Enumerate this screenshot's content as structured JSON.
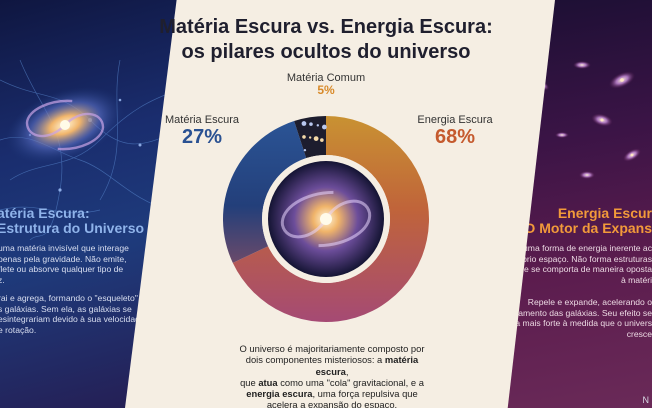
{
  "title": {
    "line1": "Matéria Escura vs. Energia Escura:",
    "line2": "os pilares ocultos do universo"
  },
  "chart_data": {
    "type": "pie",
    "title": "Matéria Escura vs. Energia Escura: os pilares ocultos do universo",
    "categories": [
      "Energia Escura",
      "Matéria Escura",
      "Matéria Comum"
    ],
    "values": [
      68,
      27,
      5
    ],
    "labels": [
      "68%",
      "27%",
      "5%"
    ],
    "colors": [
      "#c16a2e",
      "#2a5192",
      "#1d1d2e"
    ]
  },
  "labels": {
    "dark_matter_name": "Matéria Escura",
    "dark_matter_pct": "27%",
    "ordinary_matter_name": "Matéria Comum",
    "ordinary_matter_pct": "5%",
    "dark_energy_name": "Energia Escura",
    "dark_energy_pct": "68%"
  },
  "left": {
    "title_line1": "atéria Escura:",
    "title_line2": "Estrutura do Universo",
    "p1": [
      "uma matéria invisível que interage",
      "penas pela gravidade. Não emite,",
      "flete ou absorve qualquer tipo de",
      "z."
    ],
    "p2": [
      "rai e agrega, formando o \"esqueleto\"",
      "s galáxias. Sem ela, as galáxias se",
      "esintegrariam devido à sua velocidade",
      "e rotação."
    ]
  },
  "right": {
    "title_line1": "Energia Escur",
    "title_line2": "O Motor da Expans",
    "p1": [
      "É uma forma de energia inerente ac",
      "próprio espaço. Não forma estruturas",
      "e se comporta de maneira oposta",
      "à matéri"
    ],
    "p2": [
      "Repele e expande, acelerando o",
      "afastamento das galáxias. Seu efeito se",
      "torna mais forte à medida que o univers",
      "cresce"
    ]
  },
  "caption": {
    "l1": "O universo é majoritariamente composto por",
    "l2a": "dois componentes misteriosos: a ",
    "l2b": "matéria escura",
    "l2c": ",",
    "l3a": "que ",
    "l3b": "atua",
    "l3c": " como uma \"cola\" gravitacional, e a",
    "l4a": "energia escura",
    "l4b": ", uma força repulsiva que",
    "l5": "acelera a expansão do espaço."
  },
  "brand": "N"
}
